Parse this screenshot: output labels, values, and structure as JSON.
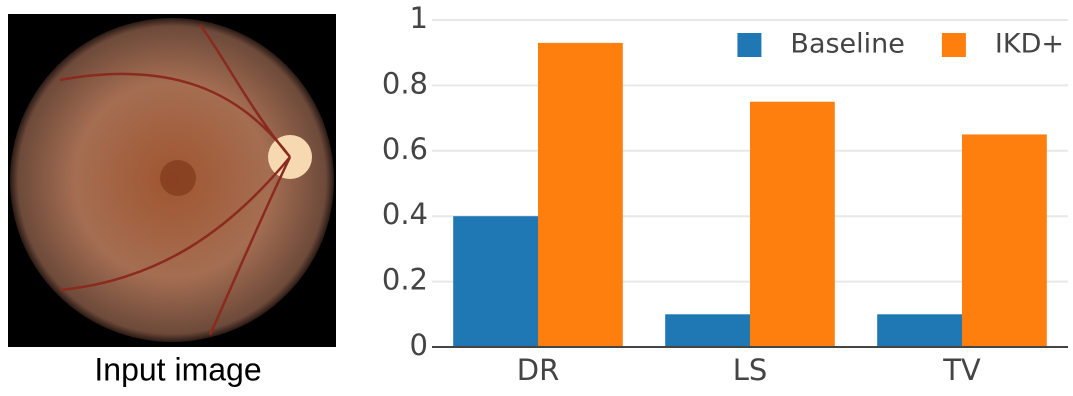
{
  "image": {
    "caption": "Input image"
  },
  "chart_data": {
    "type": "bar",
    "categories": [
      "DR",
      "LS",
      "TV"
    ],
    "series": [
      {
        "name": "Baseline",
        "color": "#1f77b4",
        "values": [
          0.4,
          0.1,
          0.1
        ]
      },
      {
        "name": "IKD+",
        "color": "#ff7f0e",
        "values": [
          0.93,
          0.75,
          0.65
        ]
      }
    ],
    "ylim": [
      0,
      1
    ],
    "yticks": [
      0,
      0.2,
      0.4,
      0.6,
      0.8,
      1
    ],
    "grid": true,
    "legend": "top-right"
  }
}
